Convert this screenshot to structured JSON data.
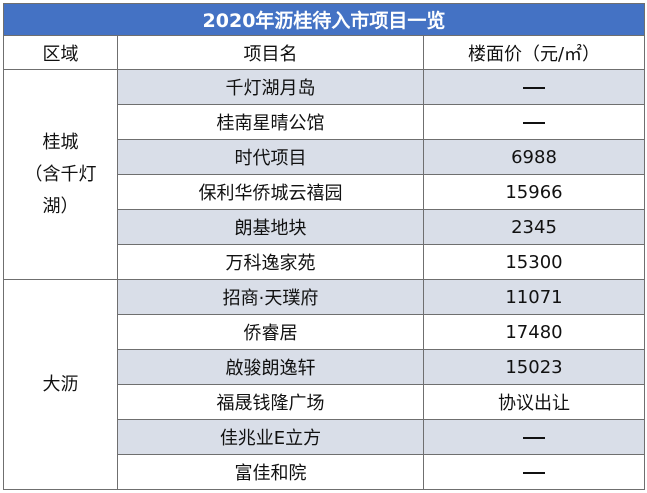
{
  "title": "2020年沥桂待入市项目一览",
  "headers": {
    "region": "区域",
    "project": "项目名",
    "price": "楼面价（元/㎡）"
  },
  "regions": [
    {
      "name_lines": [
        "桂城",
        "（含千灯",
        "湖）"
      ],
      "rows": [
        {
          "project": "千灯湖月岛",
          "price": "—"
        },
        {
          "project": "桂南星晴公馆",
          "price": "—"
        },
        {
          "project": "时代项目",
          "price": "6988"
        },
        {
          "project": "保利华侨城云禧园",
          "price": "15966"
        },
        {
          "project": "朗基地块",
          "price": "2345"
        },
        {
          "project": "万科逸家苑",
          "price": "15300"
        }
      ]
    },
    {
      "name_lines": [
        "大沥"
      ],
      "rows": [
        {
          "project": "招商·天璞府",
          "price": "11071"
        },
        {
          "project": "侨睿居",
          "price": "17480"
        },
        {
          "project": "啟骏朗逸轩",
          "price": "15023"
        },
        {
          "project": "福晟钱隆广场",
          "price": "协议出让"
        },
        {
          "project": "佳兆业E立方",
          "price": "—"
        },
        {
          "project": "富佳和院",
          "price": "—"
        }
      ]
    }
  ]
}
